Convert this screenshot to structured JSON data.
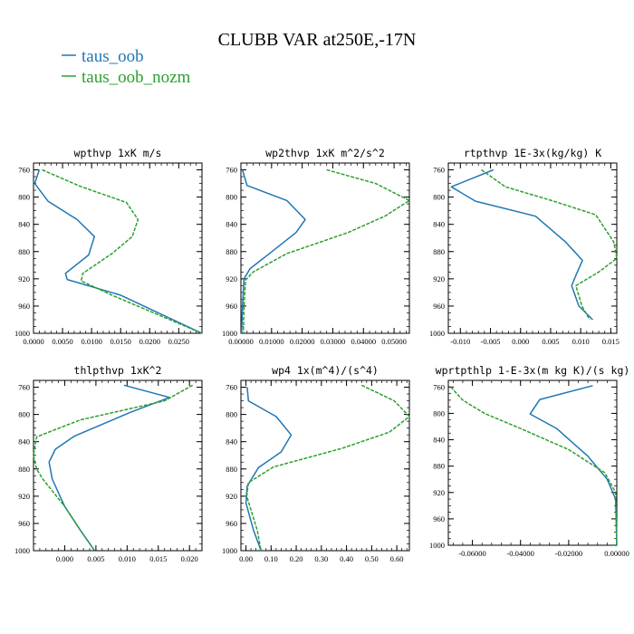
{
  "figure": {
    "title": "CLUBB VAR at250E,-17N",
    "legend": [
      {
        "name": "taus_oob",
        "color": "#1f77b4"
      },
      {
        "name": "taus_oob_nozm",
        "color": "#2ca02c"
      }
    ]
  },
  "chart_data": [
    {
      "type": "line",
      "title": "wpthvp  1xK m/s",
      "xlim": [
        0,
        0.029
      ],
      "ylim": [
        1000,
        750
      ],
      "xticks": [
        "0.0000",
        "0.0050",
        "0.0100",
        "0.0150",
        "0.0200",
        "0.0250"
      ],
      "xtick_values": [
        0,
        0.005,
        0.01,
        0.015,
        0.02,
        0.025
      ],
      "yticks": [
        760,
        800,
        840,
        880,
        920,
        960,
        1000
      ],
      "series": [
        {
          "name": "taus_oob",
          "x": [
            0.001,
            0.0002,
            0.0025,
            0.0075,
            0.0105,
            0.0095,
            0.0055,
            0.0058,
            0.015,
            0.029
          ],
          "y": [
            760,
            780,
            806,
            833,
            858,
            885,
            912,
            921,
            944,
            1000
          ]
        },
        {
          "name": "taus_oob_nozm",
          "x": [
            0.0015,
            0.008,
            0.016,
            0.018,
            0.017,
            0.0135,
            0.0085,
            0.0082,
            0.0135,
            0.029
          ],
          "y": [
            760,
            784,
            808,
            833,
            858,
            883,
            912,
            923,
            944,
            1000
          ]
        }
      ]
    },
    {
      "type": "line",
      "title": "wp2thvp  1xK m^2/s^2",
      "xlim": [
        0,
        0.055
      ],
      "ylim": [
        1000,
        750
      ],
      "xticks": [
        "0.00000",
        "0.01000",
        "0.02000",
        "0.03000",
        "0.04000",
        "0.05000"
      ],
      "xtick_values": [
        0,
        0.01,
        0.02,
        0.03,
        0.04,
        0.05
      ],
      "yticks": [
        760,
        800,
        840,
        880,
        920,
        960,
        1000
      ],
      "series": [
        {
          "name": "taus_oob",
          "x": [
            0.0005,
            0.002,
            0.015,
            0.021,
            0.018,
            0.009,
            0.003,
            0.001,
            0.0005,
            0.0002
          ],
          "y": [
            760,
            783,
            805,
            833,
            852,
            884,
            905,
            920,
            960,
            1000
          ]
        },
        {
          "name": "taus_oob_nozm",
          "x": [
            0.028,
            0.044,
            0.055,
            0.047,
            0.035,
            0.015,
            0.004,
            0.0015,
            0.001,
            0.0008
          ],
          "y": [
            760,
            780,
            805,
            828,
            852,
            883,
            910,
            922,
            960,
            1000
          ]
        }
      ]
    },
    {
      "type": "line",
      "title": "rtpthvp  1E-3x(kg/kg) K",
      "xlim": [
        -0.012,
        0.016
      ],
      "ylim": [
        1000,
        750
      ],
      "xticks": [
        "-0.010",
        "-0.005",
        "0.000",
        "0.005",
        "0.010",
        "0.015"
      ],
      "xtick_values": [
        -0.01,
        -0.005,
        0,
        0.005,
        0.01,
        0.015
      ],
      "yticks": [
        760,
        800,
        840,
        880,
        920,
        960,
        1000
      ],
      "series": [
        {
          "name": "taus_oob",
          "x": [
            -0.0045,
            -0.0115,
            -0.0075,
            0.0025,
            0.0075,
            0.0103,
            0.0092,
            0.0085,
            0.0097,
            0.012
          ],
          "y": [
            760,
            785,
            806,
            828,
            866,
            893,
            915,
            930,
            960,
            980
          ]
        },
        {
          "name": "taus_oob_nozm",
          "x": [
            -0.0065,
            -0.0025,
            0.0055,
            0.0125,
            0.0155,
            0.0162,
            0.013,
            0.0092,
            0.0102,
            0.0115
          ],
          "y": [
            760,
            785,
            806,
            826,
            866,
            890,
            910,
            930,
            960,
            980
          ]
        }
      ]
    },
    {
      "type": "line",
      "title": "thlpthvp  1xK^2",
      "xlim": [
        -0.005,
        0.022
      ],
      "ylim": [
        1000,
        750
      ],
      "xticks": [
        "0.000",
        "0.005",
        "0.010",
        "0.015",
        "0.020"
      ],
      "xtick_values": [
        0,
        0.005,
        0.01,
        0.015,
        0.02
      ],
      "yticks": [
        760,
        800,
        840,
        880,
        920,
        960,
        1000
      ],
      "series": [
        {
          "name": "taus_oob",
          "x": [
            0.0095,
            0.0168,
            0.0105,
            0.0015,
            -0.0015,
            -0.0025,
            -0.002,
            0.0,
            0.0025,
            0.0048
          ],
          "y": [
            757,
            775,
            797,
            832,
            851,
            870,
            895,
            935,
            970,
            1000
          ]
        },
        {
          "name": "taus_oob_nozm",
          "x": [
            0.0205,
            0.016,
            0.0025,
            -0.0045,
            -0.005,
            -0.0045,
            -0.0035,
            0.0,
            0.0025,
            0.0048
          ],
          "y": [
            757,
            780,
            808,
            833,
            860,
            880,
            895,
            935,
            970,
            1000
          ]
        }
      ]
    },
    {
      "type": "line",
      "title": "wp4  1x(m^4)/(s^4)",
      "xlim": [
        -0.02,
        0.65
      ],
      "ylim": [
        1000,
        750
      ],
      "xticks": [
        "0.00",
        "0.10",
        "0.20",
        "0.30",
        "0.40",
        "0.50",
        "0.60"
      ],
      "xtick_values": [
        0,
        0.1,
        0.2,
        0.3,
        0.4,
        0.5,
        0.6
      ],
      "yticks": [
        760,
        800,
        840,
        880,
        920,
        960,
        1000
      ],
      "series": [
        {
          "name": "taus_oob",
          "x": [
            0.005,
            0.01,
            0.12,
            0.18,
            0.14,
            0.05,
            0.005,
            0.0,
            0.03,
            0.06
          ],
          "y": [
            760,
            780,
            803,
            830,
            855,
            878,
            905,
            930,
            970,
            1000
          ]
        },
        {
          "name": "taus_oob_nozm",
          "x": [
            0.46,
            0.59,
            0.65,
            0.57,
            0.38,
            0.11,
            0.01,
            0.003,
            0.045,
            0.06
          ],
          "y": [
            757,
            780,
            803,
            826,
            850,
            877,
            900,
            920,
            970,
            1000
          ]
        }
      ]
    },
    {
      "type": "line",
      "title": "wprtpthlp  1-E-3x(m kg K)/(s kg)",
      "xlim": [
        -0.07,
        0.0
      ],
      "ylim": [
        1000,
        750
      ],
      "xticks": [
        "-0.06000",
        "-0.04000",
        "-0.02000",
        "0.00000"
      ],
      "xtick_values": [
        -0.06,
        -0.04,
        -0.02,
        0
      ],
      "yticks": [
        760,
        800,
        840,
        880,
        920,
        960,
        1000
      ],
      "series": [
        {
          "name": "taus_oob",
          "x": [
            -0.01,
            -0.032,
            -0.036,
            -0.025,
            -0.012,
            -0.004,
            -0.0005,
            0.0
          ],
          "y": [
            758,
            779,
            801,
            823,
            865,
            900,
            930,
            1000
          ]
        },
        {
          "name": "taus_oob_nozm",
          "x": [
            -0.069,
            -0.064,
            -0.055,
            -0.04,
            -0.02,
            -0.005,
            -0.0005,
            0.0
          ],
          "y": [
            760,
            780,
            800,
            823,
            855,
            890,
            920,
            1000
          ]
        }
      ]
    }
  ]
}
